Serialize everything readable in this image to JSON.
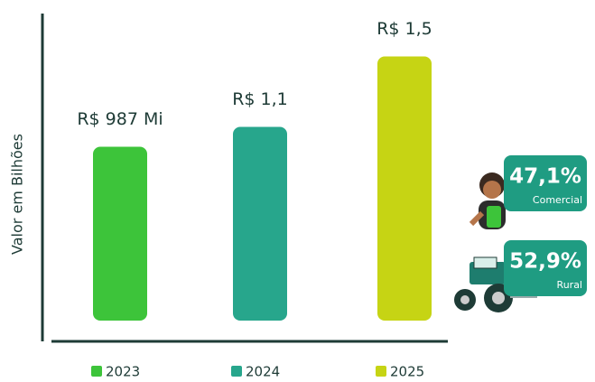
{
  "chart_data": {
    "type": "bar",
    "ylabel": "Valor em Bilhões",
    "categories": [
      "2023",
      "2024",
      "2025"
    ],
    "values": [
      0.987,
      1.1,
      1.5
    ],
    "value_labels": [
      "R$ 987 Mi",
      "R$ 1,1",
      "R$ 1,5"
    ],
    "colors": [
      "#3dc43a",
      "#27a68c",
      "#c6d414"
    ],
    "ylim": [
      0,
      1.6
    ]
  },
  "cards": [
    {
      "percent": "47,1%",
      "label": "Comercial"
    },
    {
      "percent": "52,9%",
      "label": "Rural"
    }
  ]
}
